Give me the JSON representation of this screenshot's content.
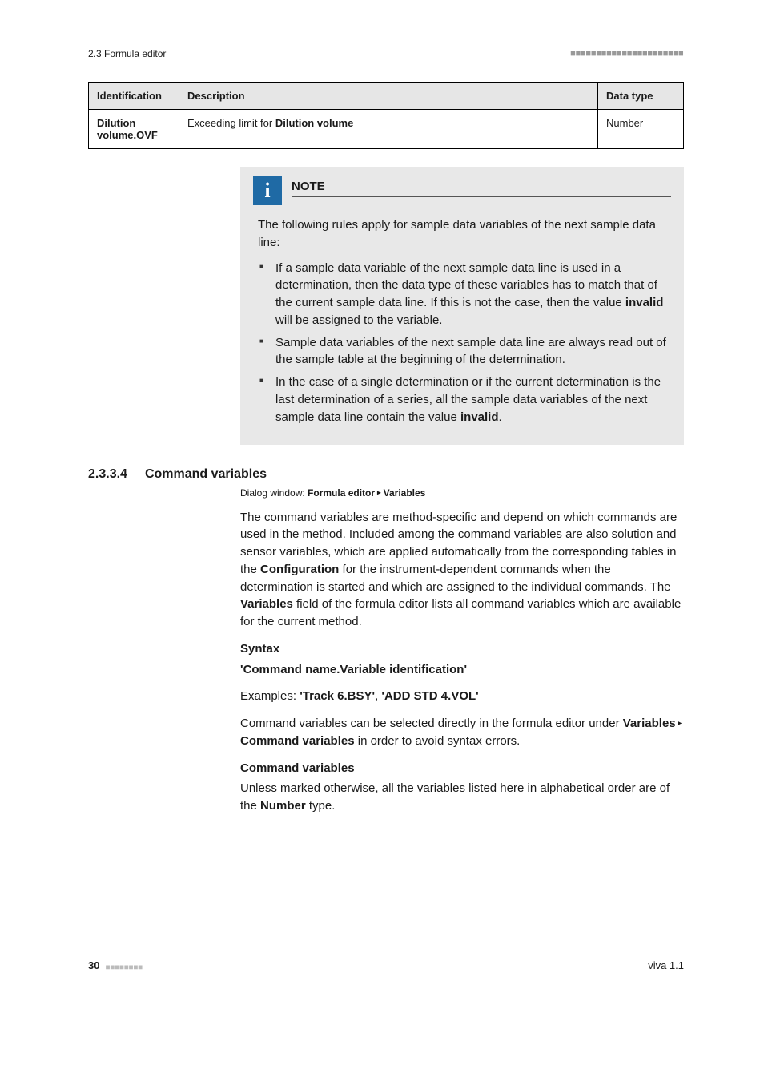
{
  "header": {
    "section": "2.3 Formula editor",
    "squares": "■■■■■■■■■■■■■■■■■■■■■■"
  },
  "table": {
    "headers": {
      "id": "Identification",
      "desc": "Description",
      "dt": "Data type"
    },
    "row": {
      "id": "Dilution volume.OVF",
      "desc_pre": "Exceeding limit for ",
      "desc_bold": "Dilution volume",
      "dt": "Number"
    }
  },
  "note": {
    "title": "NOTE",
    "intro": "The following rules apply for sample data variables of the next sample data line:",
    "b1_a": "If a sample data variable of the next sample data line is used in a determination, then the data type of these variables has to match that of the current sample data line. If this is not the case, then the value ",
    "b1_bold": "invalid",
    "b1_b": " will be assigned to the variable.",
    "b2": "Sample data variables of the next sample data line are always read out of the sample table at the beginning of the determination.",
    "b3_a": "In the case of a single determination or if the current determination is the last determination of a series, all the sample data variables of the next sample data line contain the value ",
    "b3_bold": "invalid",
    "b3_b": "."
  },
  "section": {
    "num": "2.3.3.4",
    "title": "Command variables",
    "dialog_pre": "Dialog window: ",
    "dialog_b1": "Formula editor",
    "dialog_sep": " ▸ ",
    "dialog_b2": "Variables",
    "p1_a": "The command variables are method-specific and depend on which commands are used in the method. Included among the command variables are also solution and sensor variables, which are applied automatically from the corresponding tables in the ",
    "p1_bold1": "Configuration",
    "p1_b": " for the instrument-dependent commands when the determination is started and which are assigned to the individual commands. The ",
    "p1_bold2": "Variables",
    "p1_c": " field of the formula editor lists all command variables which are available for the current method.",
    "syntax_h": "Syntax",
    "syntax_line": "'Command name.Variable identification'",
    "ex_pre": "Examples: ",
    "ex_b1": "'Track 6.BSY'",
    "ex_sep": ", ",
    "ex_b2": "'ADD STD 4.VOL'",
    "p2_a": "Command variables can be selected directly in the formula editor under ",
    "p2_b1": "Variables",
    "p2_sep": " ▸ ",
    "p2_b2": "Command variables",
    "p2_b": " in order to avoid syntax errors.",
    "cv_h": "Command variables",
    "p3_a": "Unless marked otherwise, all the variables listed here in alphabetical order are of the ",
    "p3_bold": "Number",
    "p3_b": " type."
  },
  "footer": {
    "page": "30",
    "squares": "■■■■■■■■",
    "right": "viva 1.1"
  }
}
